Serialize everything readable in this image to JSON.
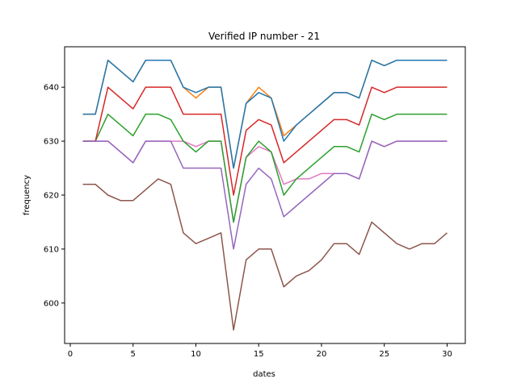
{
  "chart_data": {
    "type": "line",
    "title": "Verified IP number - 21",
    "xlabel": "dates",
    "ylabel": "frequency",
    "xlim": [
      -0.45,
      31.45
    ],
    "ylim": [
      592.5,
      647.5
    ],
    "xticks": [
      0,
      5,
      10,
      15,
      20,
      25,
      30
    ],
    "yticks": [
      600,
      610,
      620,
      630,
      640
    ],
    "grid": false,
    "legend": "none",
    "x": [
      1,
      2,
      3,
      4,
      5,
      6,
      7,
      8,
      9,
      10,
      11,
      12,
      13,
      14,
      15,
      16,
      17,
      18,
      19,
      20,
      21,
      22,
      23,
      24,
      25,
      26,
      27,
      28,
      29,
      30
    ],
    "series": [
      {
        "color": "#ff7f0e",
        "values": [
          635,
          635,
          645,
          643,
          641,
          645,
          645,
          645,
          640,
          638,
          640,
          640,
          625,
          637,
          640,
          638,
          631,
          633,
          635,
          637,
          639,
          639,
          638,
          645,
          644,
          645,
          645,
          645,
          645,
          645
        ]
      },
      {
        "color": "#1f77b4",
        "values": [
          635,
          635,
          645,
          643,
          641,
          645,
          645,
          645,
          640,
          639,
          640,
          640,
          625,
          637,
          639,
          638,
          630,
          633,
          635,
          637,
          639,
          639,
          638,
          645,
          644,
          645,
          645,
          645,
          645,
          645
        ]
      },
      {
        "color": "#e377c2",
        "values": [
          630,
          630,
          630,
          628,
          626,
          630,
          630,
          630,
          630,
          629,
          630,
          630,
          615,
          627,
          629,
          628,
          622,
          623,
          623,
          624,
          624,
          624,
          623,
          630,
          629,
          630,
          630,
          630,
          630,
          630
        ]
      },
      {
        "color": "#2ca02c",
        "values": [
          630,
          630,
          635,
          633,
          631,
          635,
          635,
          634,
          630,
          628,
          630,
          630,
          615,
          627,
          630,
          628,
          620,
          623,
          625,
          627,
          629,
          629,
          628,
          635,
          634,
          635,
          635,
          635,
          635,
          635
        ]
      },
      {
        "color": "#d62728",
        "values": [
          630,
          630,
          640,
          638,
          636,
          640,
          640,
          640,
          635,
          635,
          635,
          635,
          620,
          632,
          634,
          633,
          626,
          628,
          630,
          632,
          634,
          634,
          633,
          640,
          639,
          640,
          640,
          640,
          640,
          640
        ]
      },
      {
        "color": "#9467bd",
        "values": [
          630,
          630,
          630,
          628,
          626,
          630,
          630,
          630,
          625,
          625,
          625,
          625,
          610,
          622,
          625,
          623,
          616,
          618,
          620,
          622,
          624,
          624,
          623,
          630,
          629,
          630,
          630,
          630,
          630,
          630
        ]
      },
      {
        "color": "#8c564b",
        "values": [
          622,
          622,
          620,
          619,
          619,
          621,
          623,
          622,
          613,
          611,
          612,
          613,
          595,
          608,
          610,
          610,
          603,
          605,
          606,
          608,
          611,
          611,
          609,
          615,
          613,
          611,
          610,
          611,
          611,
          613
        ]
      }
    ]
  }
}
